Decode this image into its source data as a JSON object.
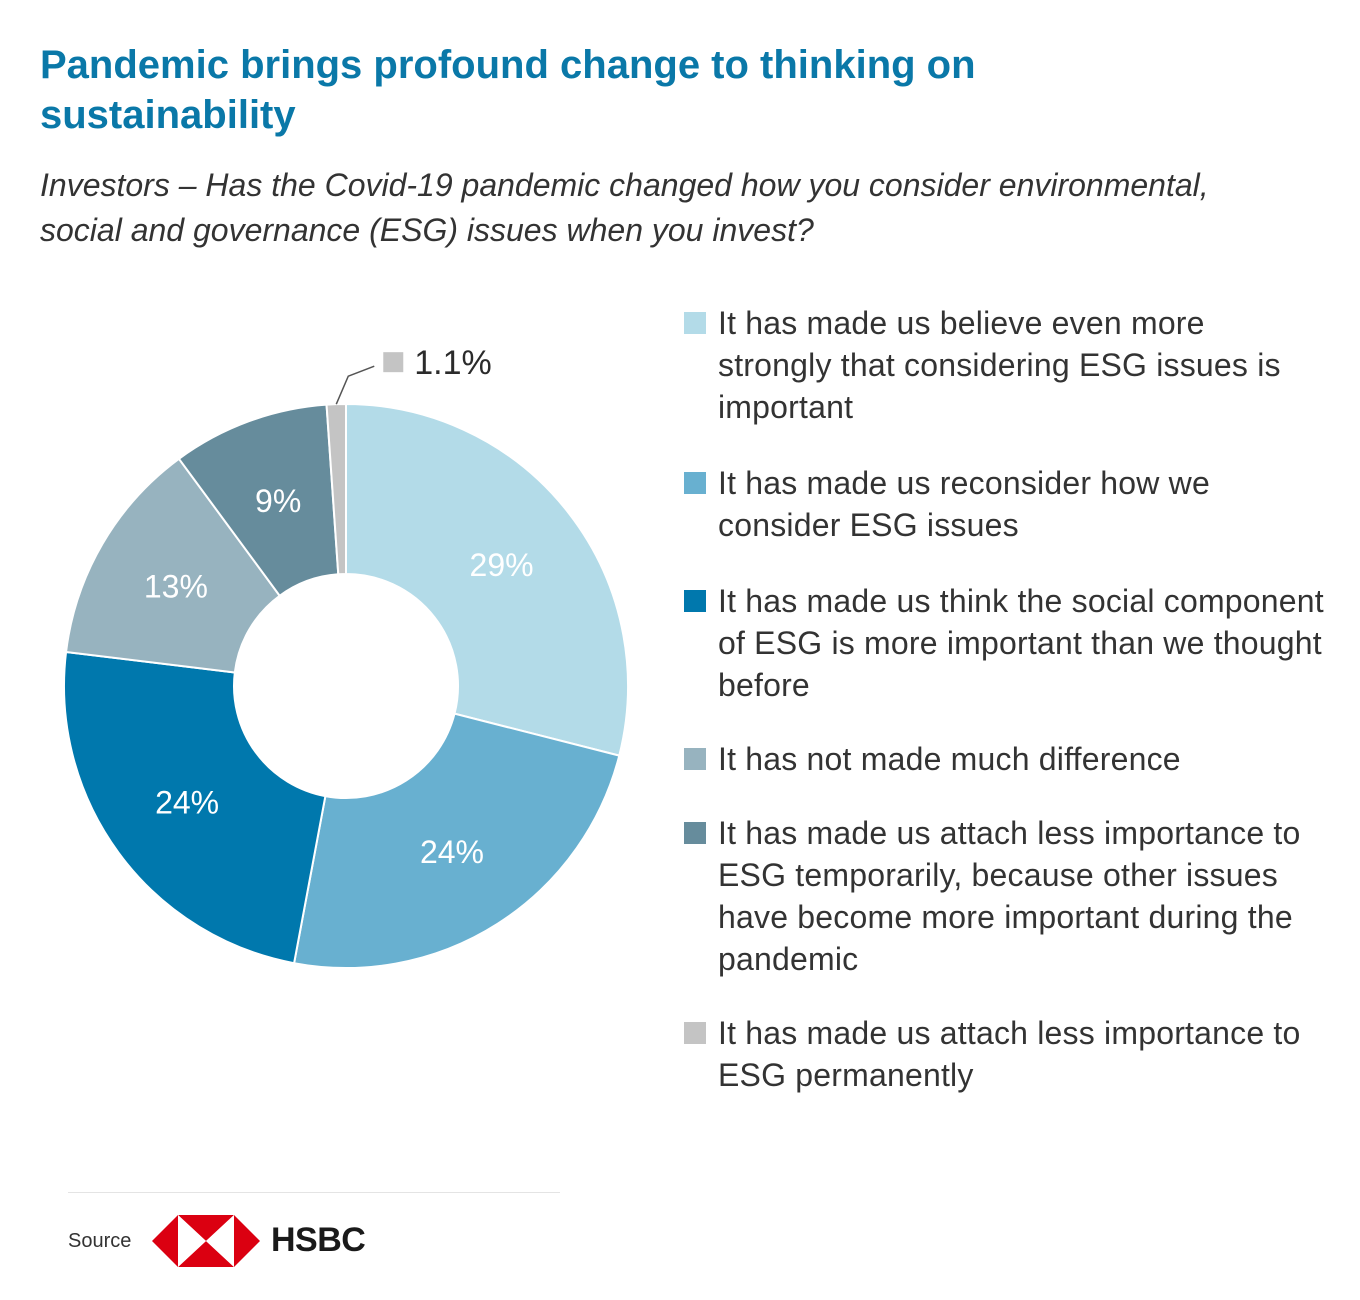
{
  "title": "Pandemic brings profound change to thinking on sustainability",
  "subtitle": "Investors – Has the Covid-19 pandemic changed how you consider environmental, social and governance (ESG) issues when you invest?",
  "chart_data": {
    "type": "pie",
    "donut": true,
    "legend_position": "right",
    "slices": [
      {
        "name": "It has made us believe even more strongly that considering ESG issues is important",
        "value": 29,
        "label": "29%",
        "color": "#b3dbe8"
      },
      {
        "name": "It has made us reconsider how we consider ESG issues",
        "value": 24,
        "label": "24%",
        "color": "#68b0d0"
      },
      {
        "name": "It has made us think the social component of ESG is more important than we thought before",
        "value": 24,
        "label": "24%",
        "color": "#0078ad"
      },
      {
        "name": "It has not made much difference",
        "value": 13,
        "label": "13%",
        "color": "#97b3bf"
      },
      {
        "name": "It has made us attach less importance to ESG temporarily, because other issues have become more important during the pandemic",
        "value": 9,
        "label": "9%",
        "color": "#668c9c"
      },
      {
        "name": "It has made us attach less importance to ESG permanently",
        "value": 1.1,
        "label": "1.1%",
        "color": "#c4c4c4"
      }
    ]
  },
  "footer": {
    "source_label": "Source",
    "brand": "HSBC",
    "brand_colors": {
      "red": "#db0011",
      "white": "#ffffff"
    }
  }
}
